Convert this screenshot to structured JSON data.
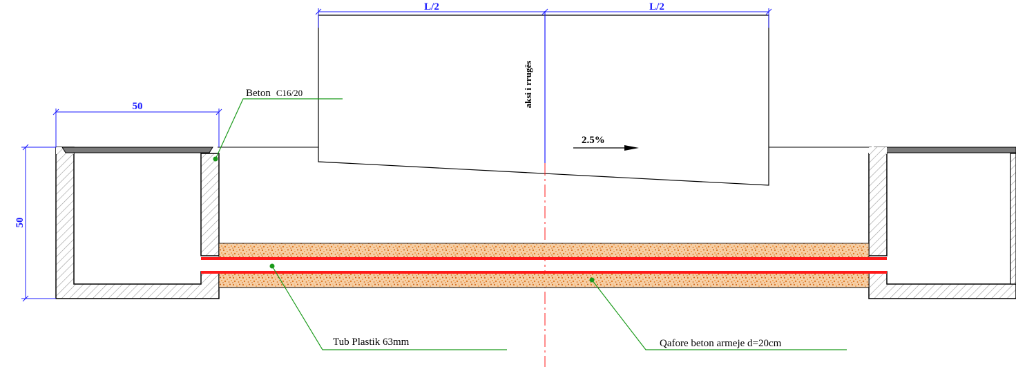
{
  "labels": {
    "beton_prefix": "Beton",
    "beton_grade": "C16/20",
    "axis": "aksi i rrugës",
    "slope": "2.5%",
    "pipe": "Tub Plastik 63mm",
    "collar": "Qafore beton armeje d=20cm"
  },
  "dimensions": {
    "half_left": "L/2",
    "half_right": "L/2",
    "channel_width": "50",
    "channel_height": "50"
  },
  "colors": {
    "dimension": "#1a1aff",
    "leader": "#1a9a1a",
    "pipe": "#ff1a1a",
    "axis_line": "#ff1a1a",
    "fill_sand": "#e88a2e",
    "hatch": "#9a9a9a",
    "outline": "#000000"
  }
}
